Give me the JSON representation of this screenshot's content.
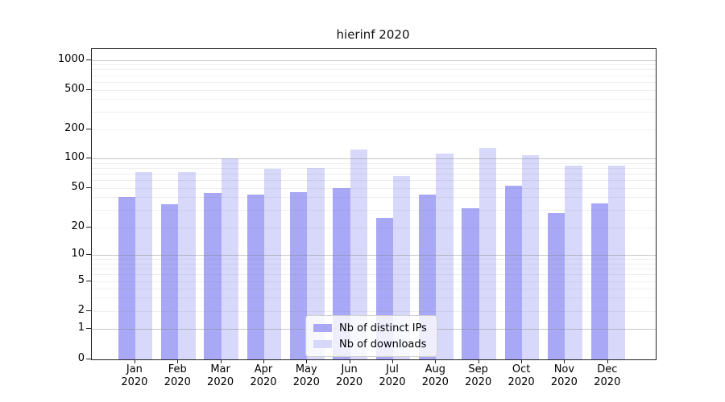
{
  "chart_data": {
    "type": "bar",
    "title": "hierinf 2020",
    "categories": [
      "Jan",
      "Feb",
      "Mar",
      "Apr",
      "May",
      "Jun",
      "Jul",
      "Aug",
      "Sep",
      "Oct",
      "Nov",
      "Dec"
    ],
    "category_year": "2020",
    "series": [
      {
        "key": "ips",
        "name": "Nb of distinct IPs",
        "color": "#a8a8f6",
        "values": [
          40,
          34,
          44,
          43,
          45,
          50,
          25,
          43,
          31,
          52,
          28,
          35
        ]
      },
      {
        "key": "downloads",
        "name": "Nb of downloads",
        "color": "#d8d8fa",
        "values": [
          72,
          72,
          100,
          78,
          80,
          123,
          66,
          112,
          127,
          107,
          85,
          85
        ]
      }
    ],
    "xlabel": "",
    "ylabel": "",
    "yscale": "symlog-like",
    "ylim": [
      0,
      1300
    ],
    "y_axis": {
      "ticks": [
        0,
        1,
        2,
        5,
        10,
        20,
        50,
        100,
        200,
        500,
        1000
      ],
      "major_gridlines": [
        1,
        10,
        100,
        1000
      ],
      "minor_gridlines": [
        2,
        3,
        4,
        5,
        6,
        7,
        8,
        9,
        20,
        30,
        40,
        50,
        60,
        70,
        80,
        90,
        200,
        300,
        400,
        500,
        600,
        700,
        800,
        900
      ],
      "scale_anchors": [
        [
          0,
          0.0
        ],
        [
          1,
          0.0984
        ],
        [
          2,
          0.1554
        ],
        [
          5,
          0.2526
        ],
        [
          10,
          0.3368
        ],
        [
          20,
          0.4262
        ],
        [
          50,
          0.5531
        ],
        [
          100,
          0.6477
        ],
        [
          200,
          0.7422
        ],
        [
          500,
          0.8692
        ],
        [
          1000,
          0.965
        ]
      ]
    },
    "grid": "on",
    "legend_position": "lower center"
  },
  "colors": {
    "ips_bar": "#a8a8f6",
    "downloads_bar": "#d8d8fa",
    "grid_major": "#c6c6c6",
    "grid_minor": "#ebebeb",
    "spine": "#222222",
    "text": "#000000",
    "legend_border": "#cfcfcf"
  }
}
